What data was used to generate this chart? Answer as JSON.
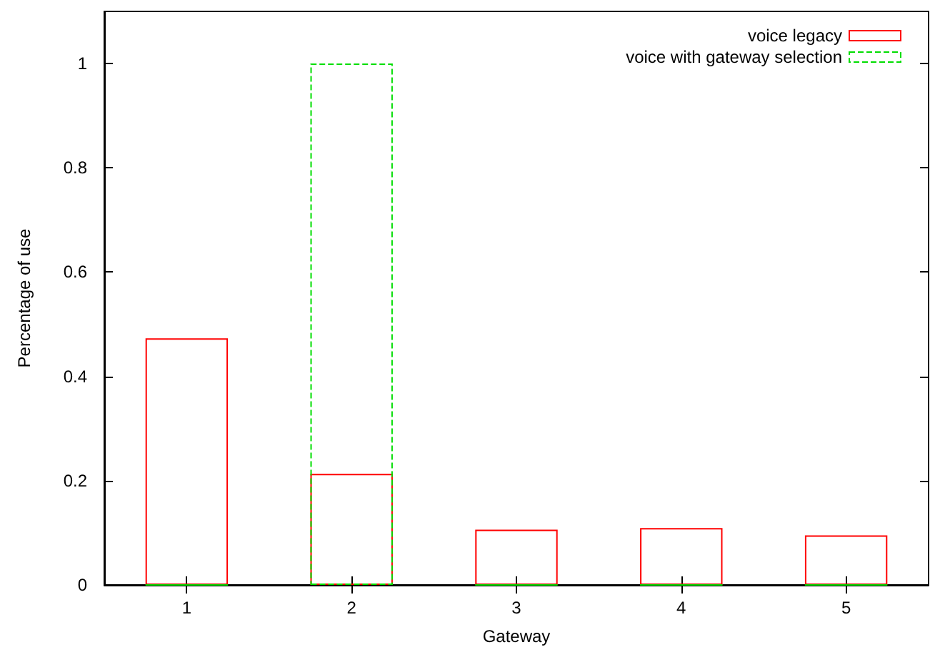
{
  "chart_data": {
    "type": "bar",
    "xlabel": "Gateway",
    "ylabel": "Percentage of use",
    "categories": [
      "1",
      "2",
      "3",
      "4",
      "5"
    ],
    "series": [
      {
        "name": "voice legacy",
        "color": "#ff0000",
        "line_style": "solid",
        "values": [
          0.473,
          0.213,
          0.106,
          0.109,
          0.095
        ]
      },
      {
        "name": "voice with gateway selection",
        "color": "#00dd00",
        "line_style": "dashed",
        "values": [
          0,
          1,
          0,
          0,
          0
        ]
      }
    ],
    "ylim": [
      0,
      1.1
    ],
    "yticks": [
      0,
      0.2,
      0.4,
      0.6,
      0.8,
      1
    ],
    "grid": false,
    "legend": "top right"
  }
}
